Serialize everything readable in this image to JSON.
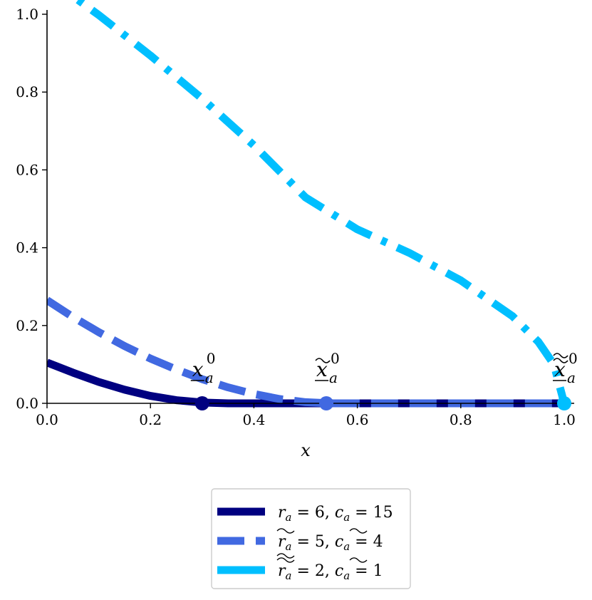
{
  "chart_data": {
    "type": "line",
    "xlabel": "x",
    "ylabel": "",
    "title": "",
    "xlim": [
      0.0,
      1.0
    ],
    "ylim": [
      0.0,
      1.0
    ],
    "xticks": [
      "0.0",
      "0.2",
      "0.4",
      "0.6",
      "0.8",
      "1.0"
    ],
    "yticks": [
      "0.0",
      "0.2",
      "0.4",
      "0.6",
      "0.8",
      "1.0"
    ],
    "grid": false,
    "legend_placement": "below",
    "series": [
      {
        "name": "r_a = 6, c_a = 15",
        "color": "#000080",
        "style": "solid",
        "x": [
          0.0,
          0.05,
          0.1,
          0.15,
          0.2,
          0.25,
          0.3,
          0.35,
          0.4,
          0.45,
          0.5,
          0.6,
          0.7,
          0.8,
          0.9,
          1.0
        ],
        "y": [
          0.105,
          0.079,
          0.055,
          0.035,
          0.019,
          0.008,
          0.002,
          0.0,
          0.0,
          0.0,
          0.0,
          0.0,
          0.0,
          0.0,
          0.0,
          0.0
        ]
      },
      {
        "name": "~r_a = 5, ~c_a = 4",
        "color": "#4169E1",
        "style": "dashed",
        "x": [
          0.0,
          0.05,
          0.1,
          0.15,
          0.2,
          0.25,
          0.3,
          0.35,
          0.4,
          0.45,
          0.5,
          0.55,
          0.6,
          0.7,
          0.8,
          0.9,
          1.0
        ],
        "y": [
          0.265,
          0.222,
          0.183,
          0.147,
          0.115,
          0.087,
          0.062,
          0.041,
          0.024,
          0.011,
          0.003,
          0.0,
          0.0,
          0.0,
          0.0,
          0.0,
          0.0
        ]
      },
      {
        "name": "≈r_a = 2, ~c_a = 1",
        "color": "#00BFFF",
        "style": "dashdot",
        "x": [
          0.0,
          0.1,
          0.2,
          0.3,
          0.4,
          0.5,
          0.6,
          0.7,
          0.8,
          0.9,
          0.95,
          0.98,
          1.0
        ],
        "y": [
          1.095,
          0.998,
          0.894,
          0.783,
          0.663,
          0.529,
          0.447,
          0.387,
          0.316,
          0.224,
          0.158,
          0.1,
          0.0
        ]
      }
    ],
    "points": [
      {
        "label": "x_a^0",
        "x": 0.3,
        "y": 0.0,
        "color": "#000080"
      },
      {
        "label": "~x_a^0",
        "x": 0.54,
        "y": 0.0,
        "color": "#4169E1"
      },
      {
        "label": "≈x_a^0",
        "x": 1.0,
        "y": 0.0,
        "color": "#00BFFF"
      }
    ]
  },
  "legend": {
    "entries": [
      {
        "r_sym": "r",
        "r_val": "= 6,",
        "c_sym": "c",
        "c_val": "= 15",
        "sub": "a"
      },
      {
        "r_sym": "r",
        "r_val": "= 5,",
        "c_sym": "c",
        "c_val": "= 4",
        "sub": "a"
      },
      {
        "r_sym": "r",
        "r_val": "= 2,",
        "c_sym": "c",
        "c_val": "= 1",
        "sub": "a"
      }
    ]
  },
  "annotations": {
    "main": "x",
    "sub": "a",
    "sup": "0"
  }
}
